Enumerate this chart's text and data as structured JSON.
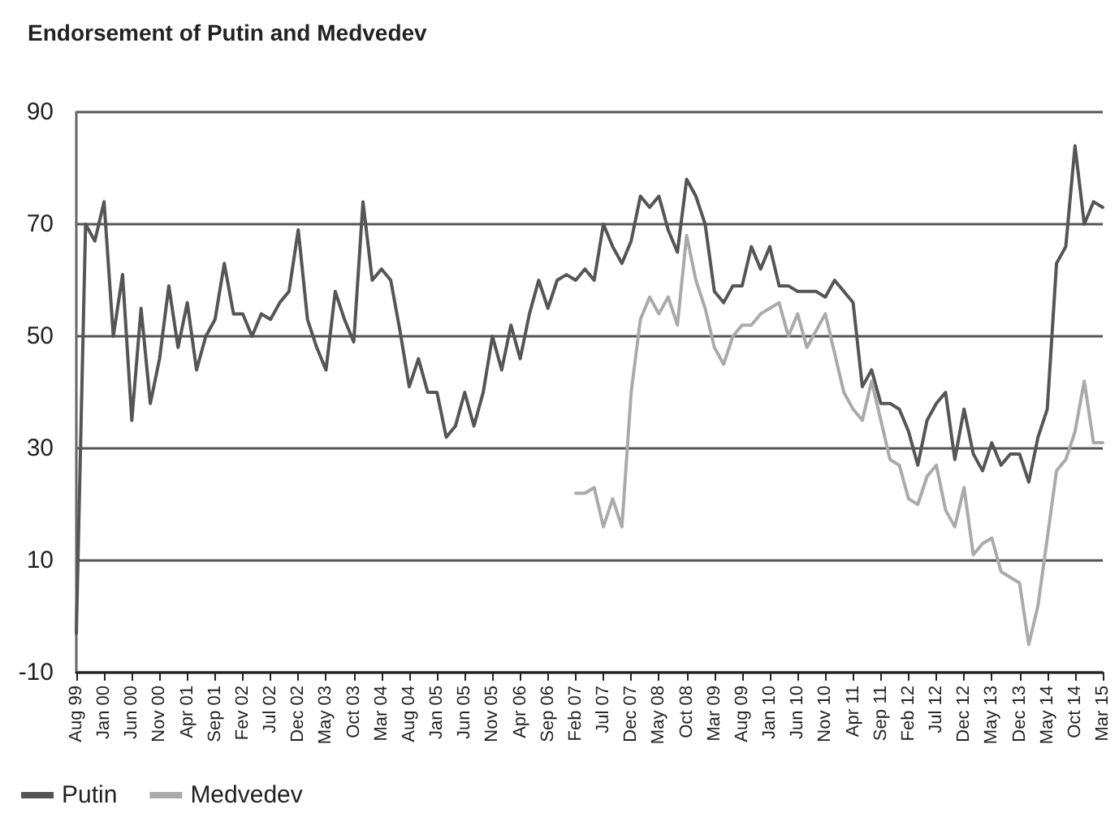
{
  "chart_data": {
    "type": "line",
    "title": "Endorsement of Putin and Medvedev",
    "categories": [
      "Aug 99",
      null,
      null,
      "Jan 00",
      null,
      null,
      "Jun 00",
      null,
      null,
      "Nov 00",
      null,
      null,
      "Apr 01",
      null,
      null,
      "Sep 01",
      null,
      null,
      "Fev 02",
      null,
      null,
      "Jul 02",
      null,
      null,
      "Dec 02",
      null,
      null,
      "May 03",
      null,
      null,
      "Oct 03",
      null,
      null,
      "Mar 04",
      null,
      null,
      "Aug 04",
      null,
      null,
      "Jan 05",
      null,
      null,
      "Jun 05",
      null,
      null,
      "Nov 05",
      null,
      null,
      "Apr 06",
      null,
      null,
      "Sep 06",
      null,
      null,
      "Feb 07",
      null,
      null,
      "Jul 07",
      null,
      null,
      "Dec 07",
      null,
      null,
      "May 08",
      null,
      null,
      "Oct 08",
      null,
      null,
      "Mar 09",
      null,
      null,
      "Aug 09",
      null,
      null,
      "Jan 10",
      null,
      null,
      "Jun 10",
      null,
      null,
      "Nov 10",
      null,
      null,
      "Apr 11",
      null,
      null,
      "Sep 11",
      null,
      null,
      "Feb 12",
      null,
      null,
      "Jul 12",
      null,
      null,
      "Dec 12",
      null,
      null,
      "May 13",
      null,
      null,
      "Dec 13",
      null,
      null,
      "May 14",
      null,
      null,
      "Oct 14",
      null,
      null,
      "Mar 15"
    ],
    "series": [
      {
        "name": "Putin",
        "color": "#555555",
        "values": [
          -3,
          70,
          67,
          74,
          50,
          61,
          35,
          55,
          38,
          46,
          59,
          48,
          56,
          44,
          50,
          53,
          63,
          54,
          54,
          50,
          54,
          53,
          56,
          58,
          69,
          53,
          48,
          44,
          58,
          53,
          49,
          74,
          60,
          62,
          60,
          51,
          41,
          46,
          40,
          40,
          32,
          34,
          40,
          34,
          40,
          50,
          44,
          52,
          46,
          54,
          60,
          55,
          60,
          61,
          60,
          62,
          60,
          70,
          66,
          63,
          67,
          75,
          73,
          75,
          69,
          65,
          78,
          75,
          70,
          58,
          56,
          59,
          59,
          66,
          62,
          66,
          59,
          59,
          58,
          58,
          58,
          57,
          60,
          58,
          56,
          41,
          44,
          38,
          38,
          37,
          33,
          27,
          35,
          38,
          40,
          28,
          37,
          29,
          26,
          31,
          27,
          29,
          29,
          24,
          32,
          37,
          63,
          66,
          84,
          70,
          74,
          73
        ]
      },
      {
        "name": "Medvedev",
        "color": "#aaaaaa",
        "values": [
          null,
          null,
          null,
          null,
          null,
          null,
          null,
          null,
          null,
          null,
          null,
          null,
          null,
          null,
          null,
          null,
          null,
          null,
          null,
          null,
          null,
          null,
          null,
          null,
          null,
          null,
          null,
          null,
          null,
          null,
          null,
          null,
          null,
          null,
          null,
          null,
          null,
          null,
          null,
          null,
          null,
          null,
          null,
          null,
          null,
          null,
          null,
          null,
          null,
          null,
          null,
          null,
          null,
          null,
          22,
          22,
          23,
          16,
          21,
          16,
          40,
          53,
          57,
          54,
          57,
          52,
          68,
          60,
          55,
          48,
          45,
          50,
          52,
          52,
          54,
          55,
          56,
          50,
          54,
          48,
          51,
          54,
          47,
          40,
          37,
          35,
          42,
          35,
          28,
          27,
          21,
          20,
          25,
          27,
          19,
          16,
          23,
          11,
          13,
          14,
          8,
          7,
          6,
          -5,
          2,
          14,
          26,
          28,
          33,
          42,
          31,
          31
        ]
      }
    ],
    "ylim": [
      -10,
      90
    ],
    "yticks": [
      -10,
      10,
      30,
      50,
      70,
      90
    ],
    "grid": "y",
    "legend": "bottom left",
    "marker": "none",
    "line_style": "solid"
  }
}
